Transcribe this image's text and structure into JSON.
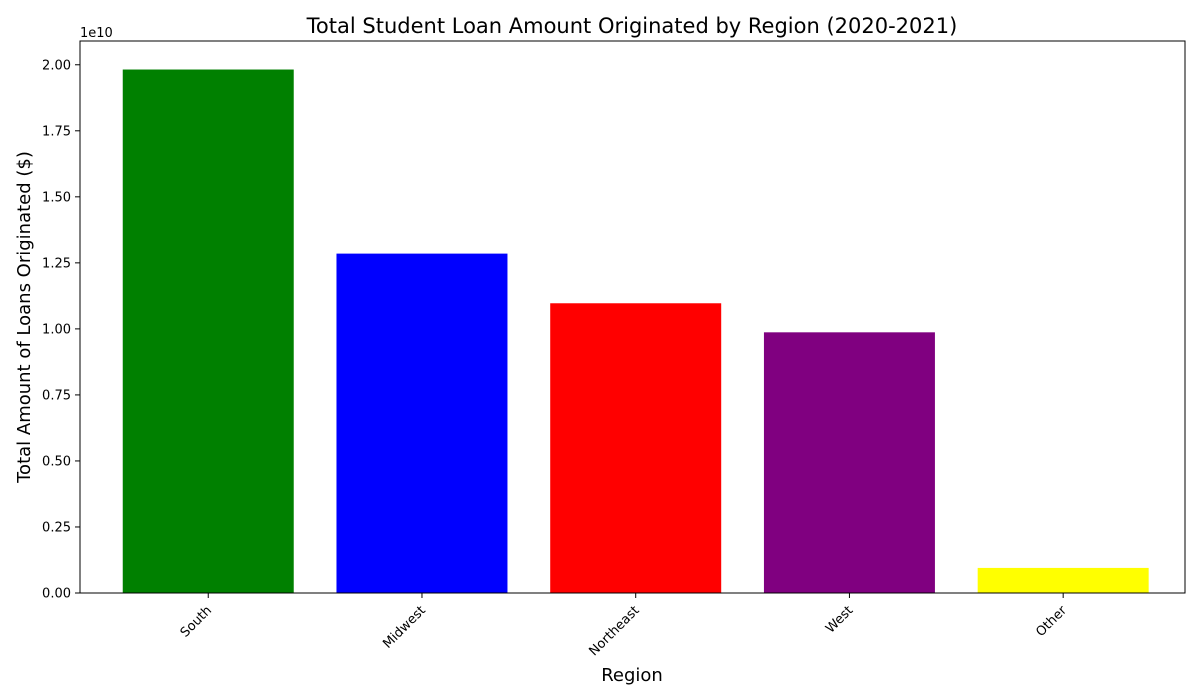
{
  "chart_data": {
    "type": "bar",
    "title": "Total Student Loan Amount Originated by Region (2020-2021)",
    "xlabel": "Region",
    "ylabel": "Total Amount of Loans Originated ($)",
    "y_offset_label": "1e10",
    "categories": [
      "South",
      "Midwest",
      "Northeast",
      "West",
      "Other"
    ],
    "values": [
      19820000000,
      12850000000,
      10970000000,
      9870000000,
      950000000
    ],
    "colors": [
      "#008000",
      "#0000ff",
      "#ff0000",
      "#800080",
      "#ffff00"
    ],
    "ylim": [
      0,
      20900000000
    ],
    "yticks": [
      0,
      2500000000,
      5000000000,
      7500000000,
      10000000000,
      12500000000,
      15000000000,
      17500000000,
      20000000000
    ],
    "ytick_labels": [
      "0.00",
      "0.25",
      "0.50",
      "0.75",
      "1.00",
      "1.25",
      "1.50",
      "1.75",
      "2.00"
    ],
    "grid": false,
    "legend": "none"
  }
}
